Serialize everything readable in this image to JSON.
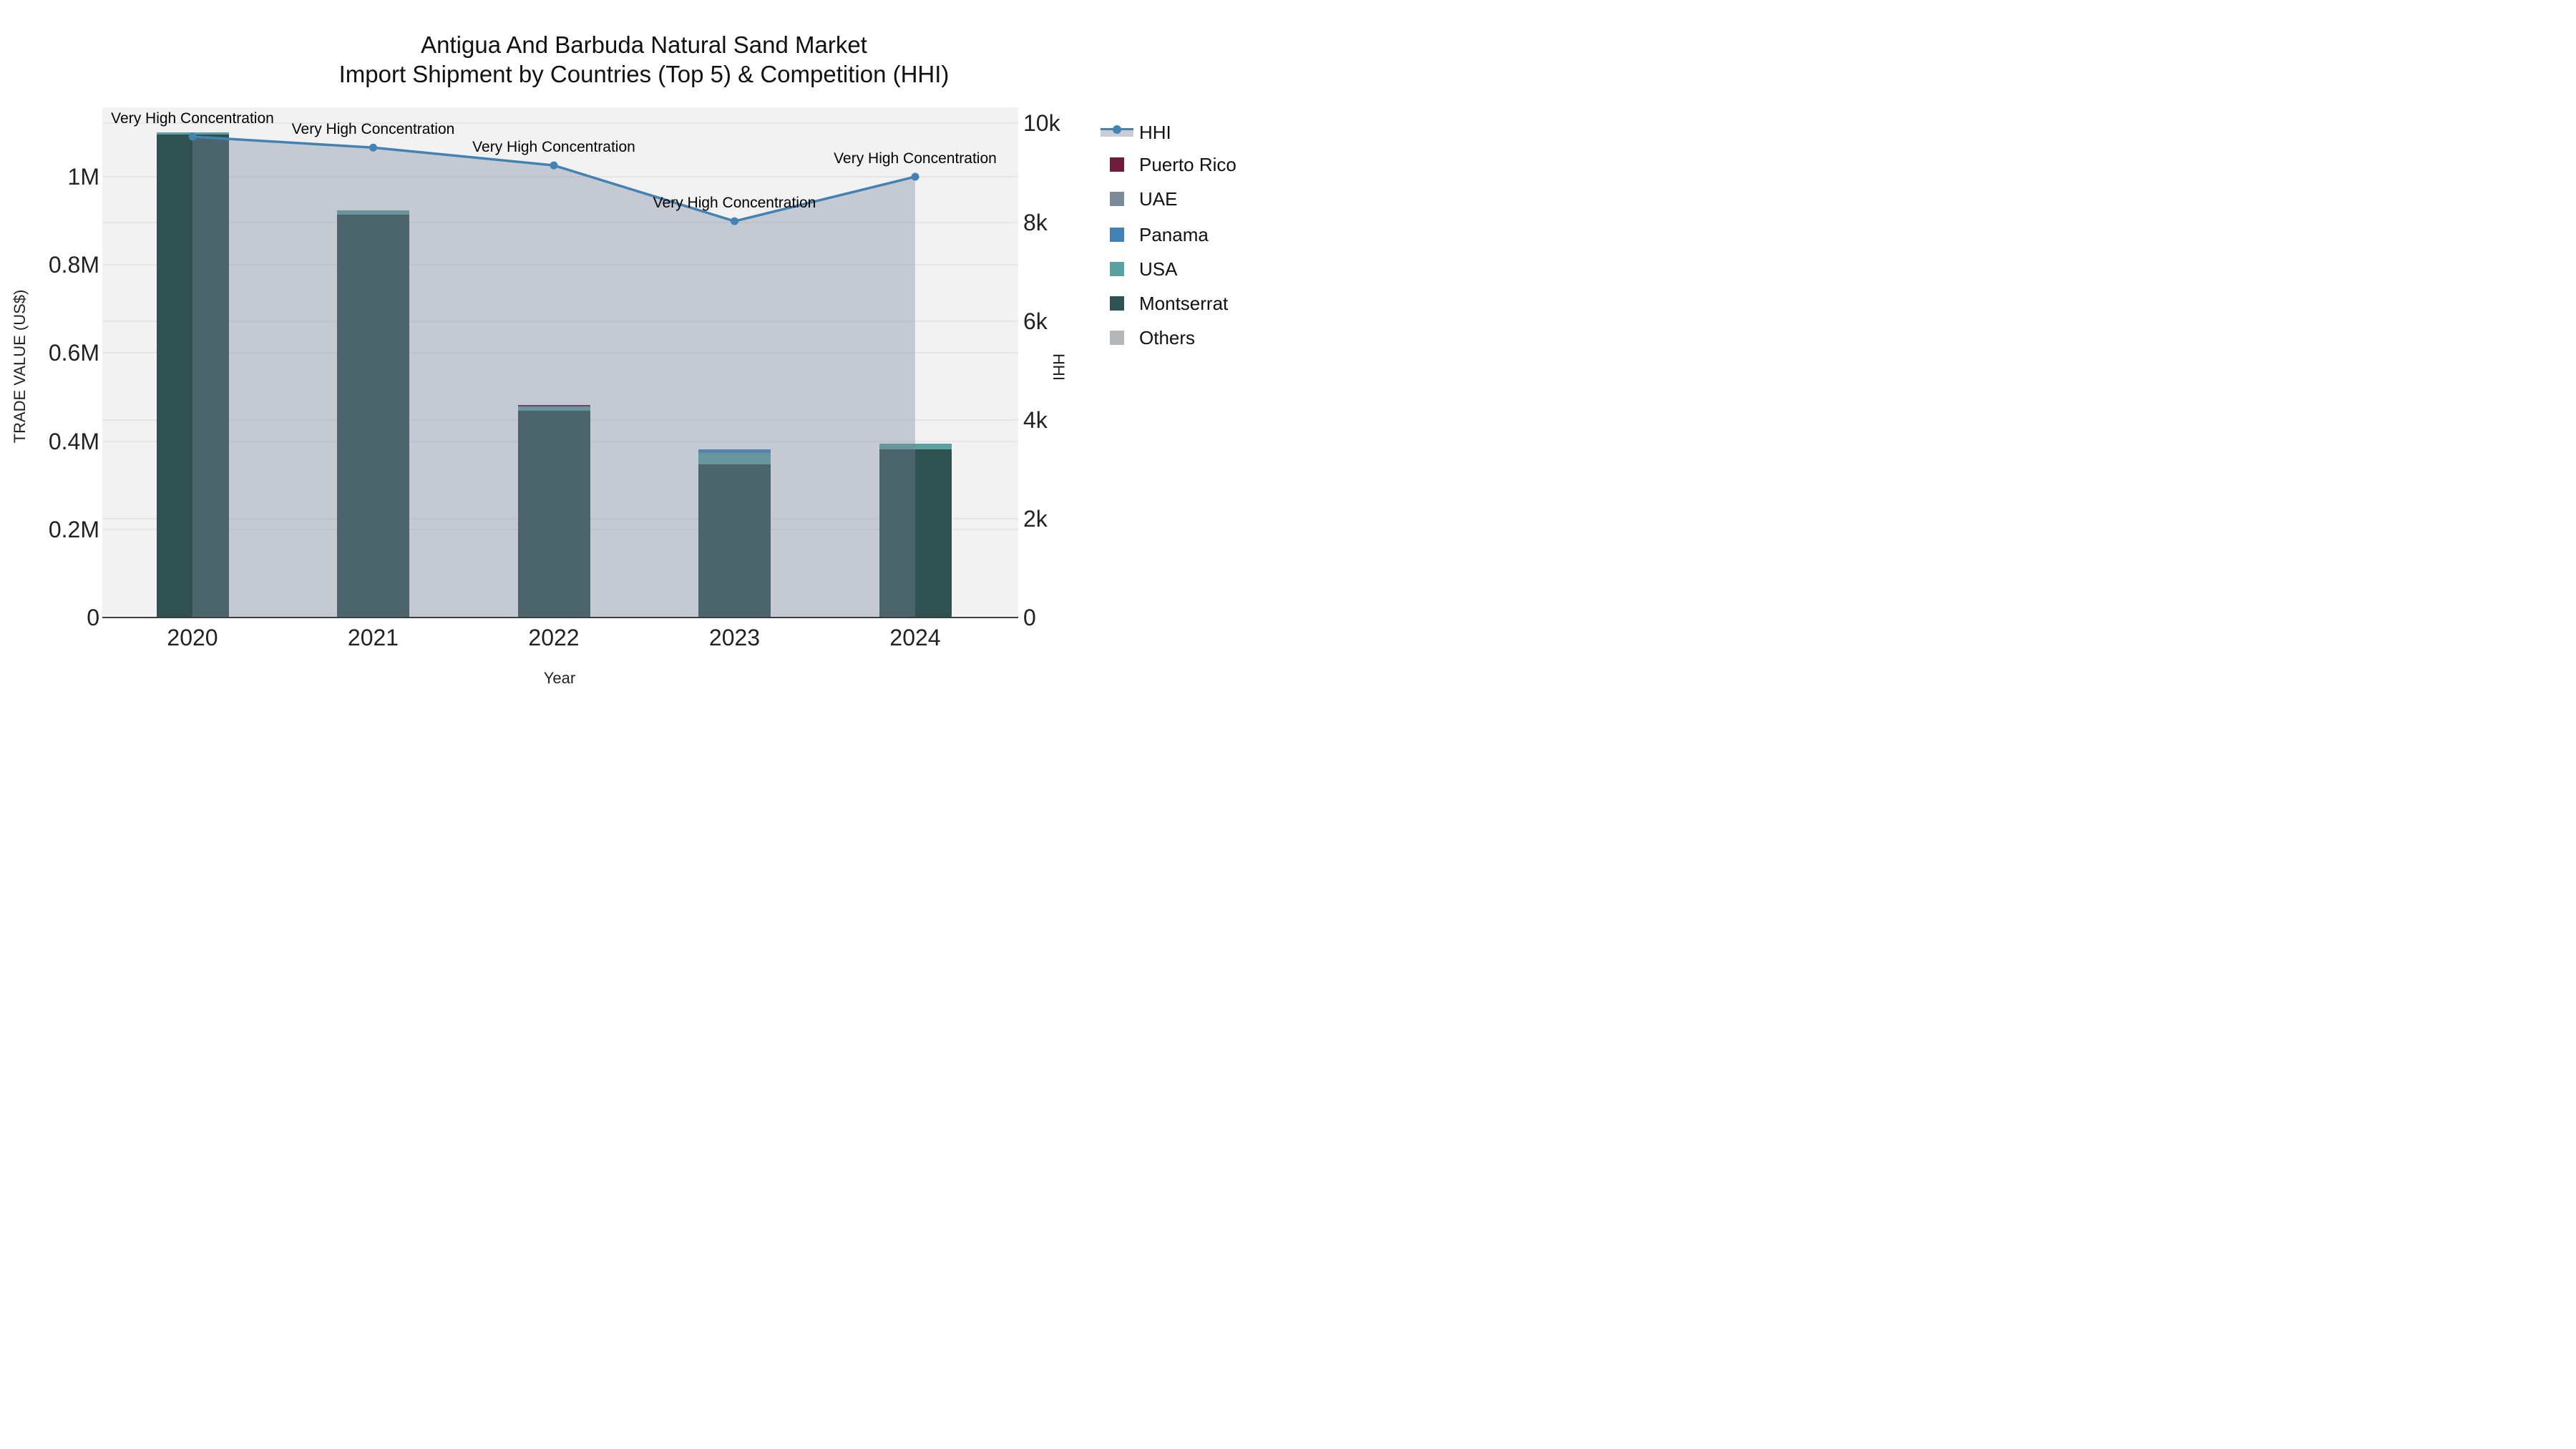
{
  "title": {
    "line1": "Antigua And Barbuda Natural Sand Market",
    "line2": "Import Shipment by Countries (Top 5) & Competition (HHI)"
  },
  "axes": {
    "x": {
      "title": "Year",
      "categories": [
        "2020",
        "2021",
        "2022",
        "2023",
        "2024"
      ]
    },
    "left": {
      "title": "TRADE VALUE (US$)",
      "ticks": [
        {
          "label": "0",
          "value": 0
        },
        {
          "label": "0.2M",
          "value": 200000
        },
        {
          "label": "0.4M",
          "value": 400000
        },
        {
          "label": "0.6M",
          "value": 600000
        },
        {
          "label": "0.8M",
          "value": 800000
        },
        {
          "label": "1M",
          "value": 1000000
        }
      ]
    },
    "right": {
      "title": "HHI",
      "ticks": [
        {
          "label": "0",
          "value": 0
        },
        {
          "label": "2k",
          "value": 2000
        },
        {
          "label": "4k",
          "value": 4000
        },
        {
          "label": "6k",
          "value": 6000
        },
        {
          "label": "8k",
          "value": 8000
        },
        {
          "label": "10k",
          "value": 10000
        }
      ]
    }
  },
  "chart_data": {
    "type": "combo",
    "subtypes": [
      "stacked-bar",
      "line-area"
    ],
    "categories": [
      "2020",
      "2021",
      "2022",
      "2023",
      "2024"
    ],
    "xlabel": "Year",
    "ylabel_left": "TRADE VALUE (US$)",
    "ylabel_right": "HHI",
    "y_left_range": [
      0,
      1157000
    ],
    "y_right_range": [
      0,
      10330
    ],
    "grid": true,
    "legend_position": "right",
    "bar_series": [
      {
        "name": "Montserrat",
        "color": "#2F5150",
        "values": [
          1095000,
          913000,
          469000,
          348000,
          381000
        ]
      },
      {
        "name": "USA",
        "color": "#5BA1A1",
        "values": [
          5000,
          11000,
          10000,
          25000,
          14000
        ]
      },
      {
        "name": "Panama",
        "color": "#4381B5",
        "values": [
          0,
          0,
          0,
          8000,
          0
        ]
      },
      {
        "name": "UAE",
        "color": "#7D8B99",
        "values": [
          0,
          0,
          0,
          0,
          0
        ]
      },
      {
        "name": "Puerto Rico",
        "color": "#6E1C3B",
        "values": [
          0,
          0,
          2500,
          0,
          0
        ]
      },
      {
        "name": "Others",
        "color": "#B5B8BA",
        "values": [
          0,
          0,
          0,
          0,
          0
        ]
      }
    ],
    "line_series": {
      "name": "HHI",
      "color": "#4383B4",
      "marker": "circle",
      "area_fill": "rgba(124,135,154,0.38)",
      "values": [
        9730,
        9510,
        9150,
        8020,
        8920
      ]
    },
    "annotations": [
      {
        "text": "Very High Concentration",
        "x": "2020"
      },
      {
        "text": "Very High Concentration",
        "x": "2021"
      },
      {
        "text": "Very High Concentration",
        "x": "2022"
      },
      {
        "text": "Very High Concentration",
        "x": "2023"
      },
      {
        "text": "Very High Concentration",
        "x": "2024"
      }
    ]
  },
  "legend": {
    "items": [
      {
        "label": "HHI",
        "type": "line",
        "color": "#4383B4",
        "band_color": "#C8CDD6"
      },
      {
        "label": "Puerto Rico",
        "type": "square",
        "color": "#6E1C3B"
      },
      {
        "label": "UAE",
        "type": "square",
        "color": "#7D8B99"
      },
      {
        "label": "Panama",
        "type": "square",
        "color": "#4381B5"
      },
      {
        "label": "USA",
        "type": "square",
        "color": "#5BA1A1"
      },
      {
        "label": "Montserrat",
        "type": "square",
        "color": "#2F5150"
      },
      {
        "label": "Others",
        "type": "square",
        "color": "#B5B8BA"
      }
    ]
  },
  "colors": {
    "plot_bg": "#F2F2F3",
    "grid": "#E5E7E9",
    "axis_line": "#3B3F44",
    "text": "#111111"
  }
}
